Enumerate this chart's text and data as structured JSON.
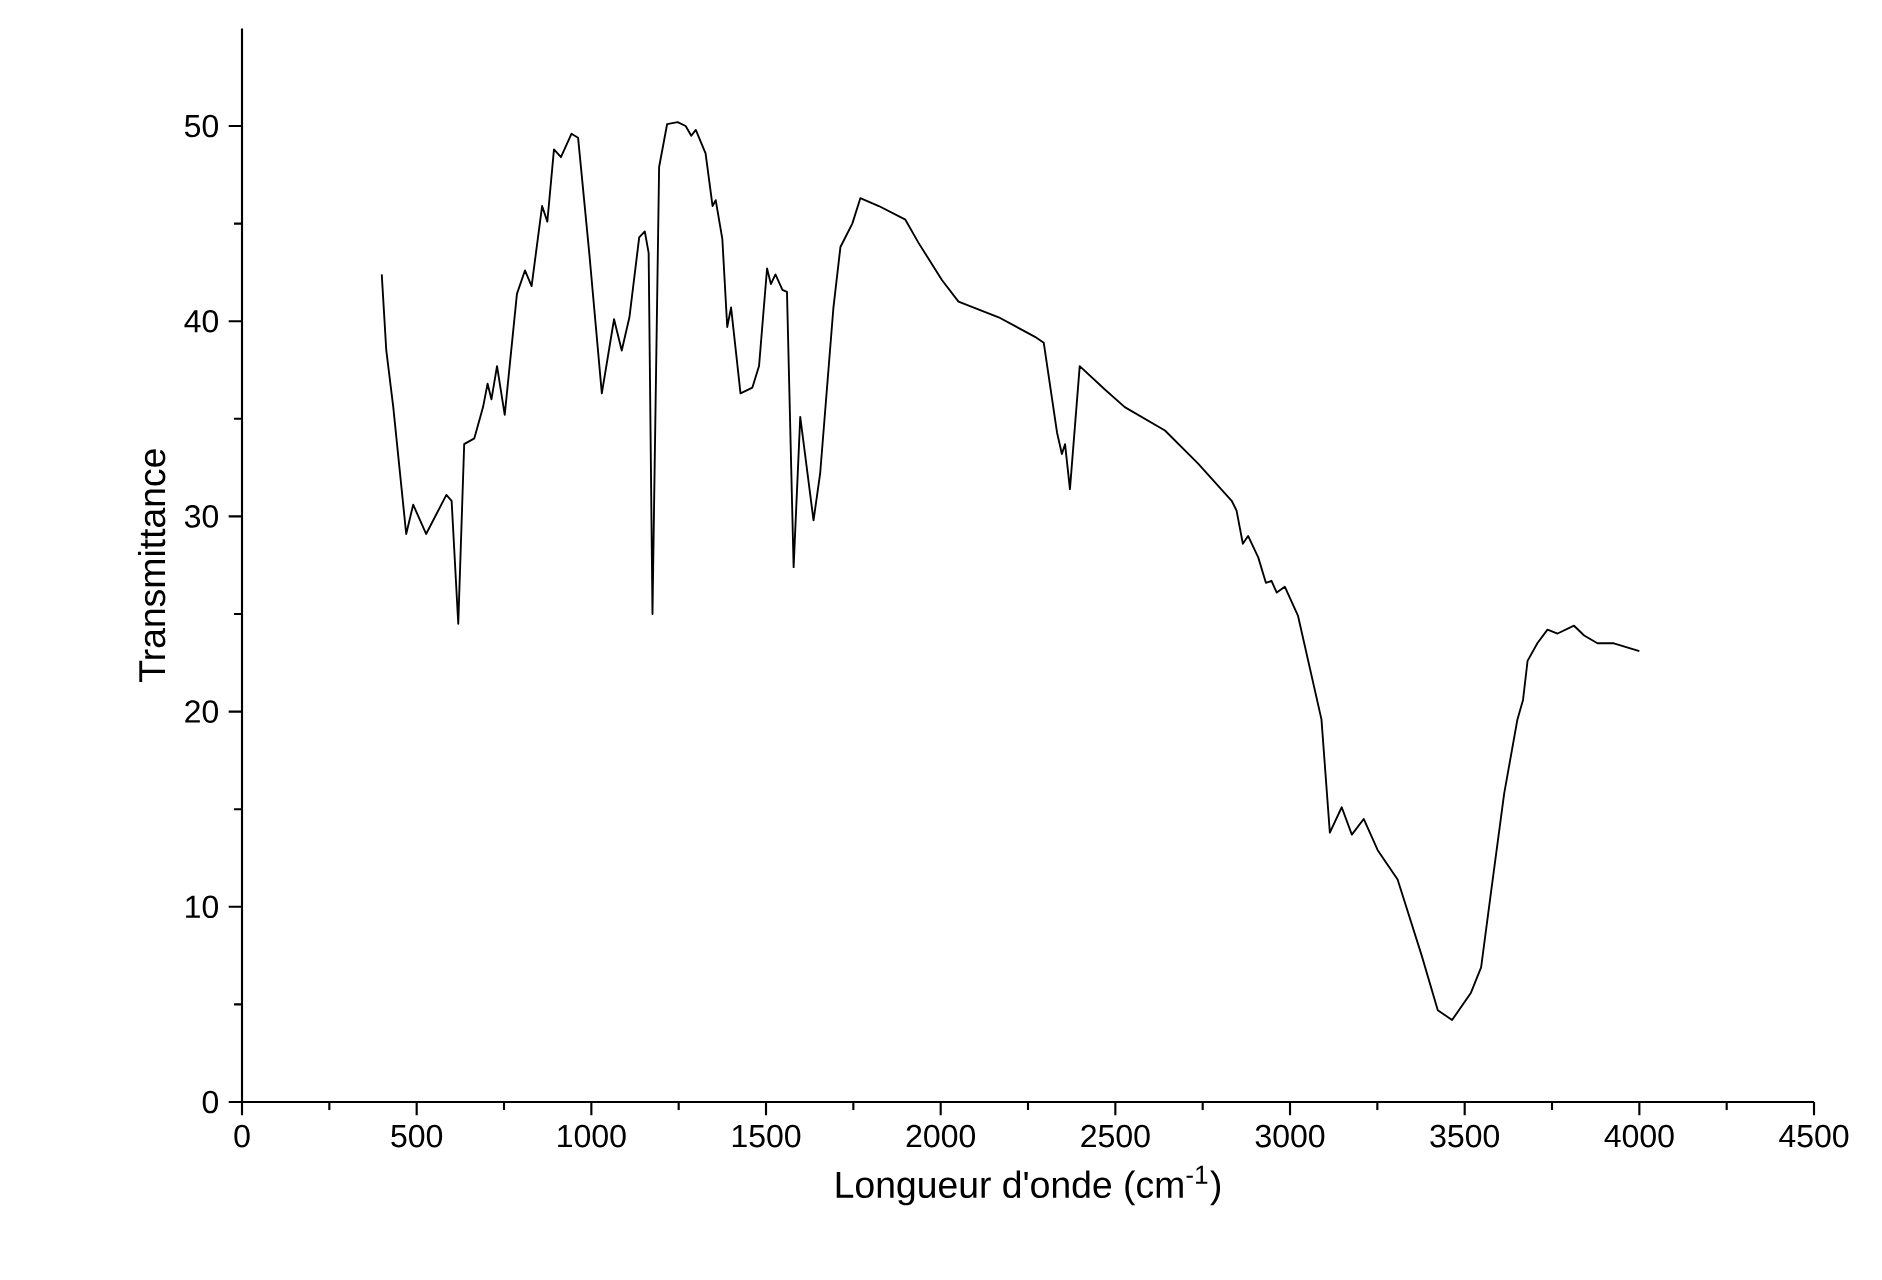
{
  "chart_data": {
    "type": "line",
    "xlabel": "Longueur d'onde (cm$^{-1}$)",
    "ylabel": "Transmittance",
    "xlim": [
      0,
      4500
    ],
    "ylim": [
      0,
      55
    ],
    "xticks": [
      0,
      {
        "value": 250,
        "label": null
      },
      500,
      {
        "value": 750,
        "label": null
      },
      1000,
      {
        "value": 1250,
        "label": null
      },
      1500,
      {
        "value": 1750,
        "label": null
      },
      2000,
      {
        "value": 2250,
        "label": null
      },
      2500,
      {
        "value": 2750,
        "label": null
      },
      3000,
      {
        "value": 3250,
        "label": null
      },
      3500,
      {
        "value": 3750,
        "label": null
      },
      4000,
      {
        "value": 4250,
        "label": null
      },
      4500
    ],
    "yticks": [
      0,
      {
        "value": 5,
        "label": null
      },
      10,
      {
        "value": 15,
        "label": null
      },
      20,
      {
        "value": 25,
        "label": null
      },
      30,
      {
        "value": 35,
        "label": null
      },
      40,
      {
        "value": 45,
        "label": null
      },
      50
    ],
    "color": "#000000",
    "x": [
      400,
      413,
      433,
      470,
      490,
      527,
      585,
      600,
      619,
      636,
      665,
      690,
      703,
      714,
      730,
      752,
      787,
      810,
      829,
      859,
      874,
      893,
      913,
      943,
      962,
      994,
      1030,
      1065,
      1087,
      1109,
      1137,
      1153,
      1164,
      1175,
      1194,
      1217,
      1247,
      1270,
      1286,
      1299,
      1327,
      1347,
      1356,
      1375,
      1389,
      1400,
      1427,
      1461,
      1480,
      1503,
      1514,
      1527,
      1547,
      1560,
      1579,
      1598,
      1636,
      1655,
      1693,
      1713,
      1747,
      1770,
      1823,
      1899,
      1937,
      2004,
      2051,
      2166,
      2270,
      2295,
      2333,
      2347,
      2356,
      2370,
      2398,
      2470,
      2527,
      2642,
      2737,
      2833,
      2847,
      2865,
      2880,
      2909,
      2931,
      2947,
      2962,
      2985,
      3023,
      3090,
      3114,
      3148,
      3177,
      3211,
      3251,
      3308,
      3377,
      3423,
      3464,
      3518,
      3547,
      3575,
      3613,
      3651,
      3667,
      3680,
      3708,
      3737,
      3766,
      3813,
      3842,
      3880,
      3927,
      4000
    ],
    "values": [
      42.4,
      38.5,
      35.6,
      29.1,
      30.6,
      29.1,
      31.1,
      30.8,
      24.5,
      33.7,
      34.0,
      35.6,
      36.8,
      36.0,
      37.7,
      35.2,
      41.4,
      42.6,
      41.8,
      45.9,
      45.1,
      48.8,
      48.4,
      49.6,
      49.4,
      43.5,
      36.3,
      40.1,
      38.5,
      40.2,
      44.3,
      44.6,
      43.5,
      25.0,
      47.9,
      50.1,
      50.2,
      50.0,
      49.5,
      49.8,
      48.6,
      45.9,
      46.2,
      44.2,
      39.7,
      40.7,
      36.3,
      36.6,
      37.7,
      42.7,
      41.9,
      42.4,
      41.6,
      41.5,
      27.4,
      35.1,
      29.8,
      32.2,
      40.7,
      43.8,
      45.0,
      46.3,
      45.9,
      45.2,
      44.0,
      42.1,
      41.0,
      40.2,
      39.2,
      38.9,
      34.3,
      33.2,
      33.7,
      31.4,
      37.7,
      36.5,
      35.6,
      34.4,
      32.7,
      30.8,
      30.3,
      28.6,
      29.0,
      27.9,
      26.6,
      26.7,
      26.1,
      26.4,
      24.9,
      19.6,
      13.8,
      15.1,
      13.7,
      14.5,
      12.9,
      11.4,
      7.5,
      4.7,
      4.2,
      5.6,
      6.9,
      10.7,
      15.8,
      19.6,
      20.6,
      22.6,
      23.5,
      24.2,
      24.0,
      24.4,
      23.9,
      23.5,
      23.5,
      23.1
    ]
  }
}
